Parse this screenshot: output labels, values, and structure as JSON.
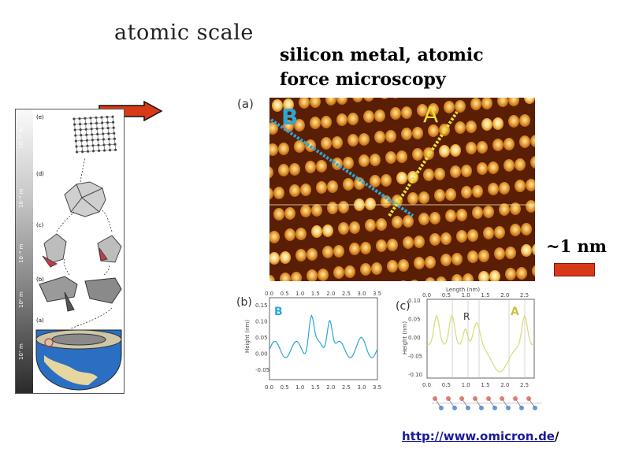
{
  "title": "atomic scale",
  "subtitle_line1": "silicon metal, atomic",
  "subtitle_line2": "force microscopy",
  "scale_label": "~1 nm",
  "url": "http://www.omicron.de",
  "url_suffix": "/",
  "left_panel": {
    "scale_labels": [
      "10⁻¹⁰ m",
      "10⁻⁹ m",
      "10⁻⁶ m",
      "10⁰ m",
      "10⁷ m"
    ],
    "stage_labels": [
      "(e)",
      "(d)",
      "(c)",
      "(b)",
      "(a)"
    ]
  },
  "figure": {
    "panel_a": "(a)",
    "line_b": "B",
    "line_a": "A",
    "panel_b": "(b)",
    "panel_c": "(c)",
    "b_series": "B",
    "c_series": "A",
    "c_marker": "R",
    "top_axis_label": "Length (nm)",
    "y_label": "Height (nm)",
    "b_x_ticks": [
      "0.0",
      "0.5",
      "1.0",
      "1.5",
      "2.0",
      "2.5",
      "3.0",
      "3.5"
    ],
    "b_y_ticks": [
      "0.15",
      "0.10",
      "0.05",
      "0.00",
      "-0.05"
    ],
    "c_x_ticks": [
      "0.0",
      "0.5",
      "1.0",
      "1.5",
      "2.0",
      "2.5"
    ],
    "c_y_ticks": [
      "0.10",
      "0.05",
      "0.00",
      "-0.05",
      "-0.10"
    ]
  },
  "colors": {
    "arrow": "#d83a18",
    "line_b": "#2aa8d8",
    "line_a": "#e8e030",
    "afm_dark": "#5a1e04",
    "afm_bright": "#ffd878"
  }
}
